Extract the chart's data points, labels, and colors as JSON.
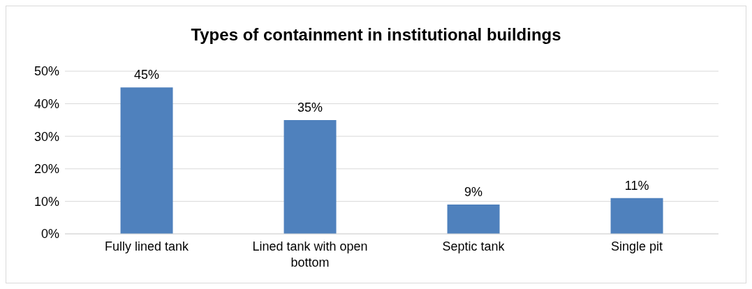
{
  "chart_data": {
    "type": "bar",
    "title": "Types of containment in institutional buildings",
    "categories": [
      "Fully lined tank",
      "Lined tank with open bottom",
      "Septic tank",
      "Single pit"
    ],
    "values": [
      45,
      35,
      9,
      11
    ],
    "value_labels": [
      "45%",
      "35%",
      "9%",
      "11%"
    ],
    "color": "#4f81bd",
    "ylim": [
      0,
      50
    ],
    "yticks": [
      {
        "value": 0,
        "label": "0%"
      },
      {
        "value": 10,
        "label": "10%"
      },
      {
        "value": 20,
        "label": "20%"
      },
      {
        "value": 30,
        "label": "30%"
      },
      {
        "value": 40,
        "label": "40%"
      },
      {
        "value": 50,
        "label": "50%"
      }
    ],
    "grid": "y"
  }
}
